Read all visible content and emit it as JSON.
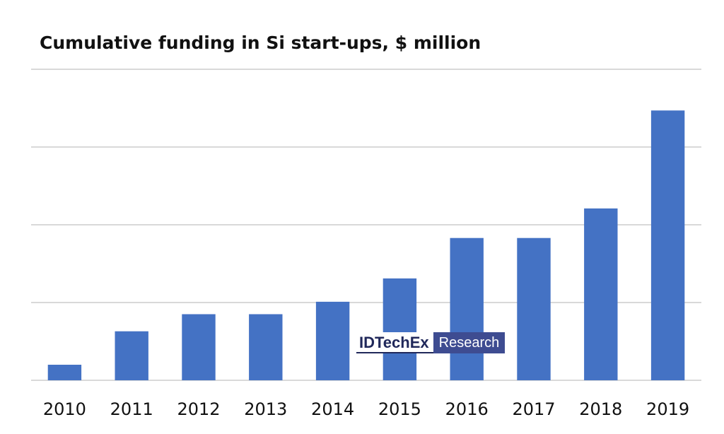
{
  "chart_data": {
    "type": "bar",
    "title": "Cumulative funding in Si start-ups, $ million",
    "xlabel": "",
    "ylabel": "",
    "categories": [
      "2010",
      "2011",
      "2012",
      "2013",
      "2014",
      "2015",
      "2016",
      "2017",
      "2018",
      "2019"
    ],
    "values": [
      0.2,
      0.63,
      0.85,
      0.85,
      1.01,
      1.31,
      1.83,
      1.83,
      2.21,
      3.47
    ],
    "ylim": [
      0,
      4
    ],
    "gridlines": 4,
    "y_tick_labels_visible": false,
    "bar_color": "#4472c4",
    "grid_color": "#d9d9d9"
  },
  "watermark": {
    "brand": "IDTechEx",
    "tag": "Research"
  }
}
